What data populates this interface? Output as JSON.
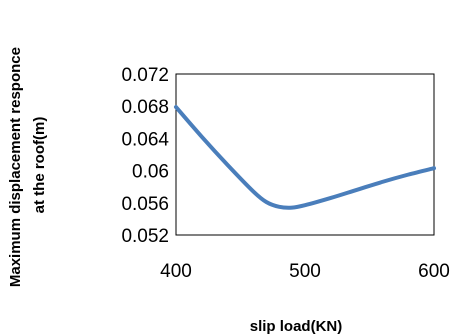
{
  "chart_data": {
    "type": "line",
    "title": "",
    "xlabel": "slip load(KN)",
    "ylabel_lines": [
      "Maximum displacement responce",
      "at the roof(m)"
    ],
    "xlim": [
      400,
      600
    ],
    "ylim": [
      0.052,
      0.072
    ],
    "x_ticks": [
      400,
      500,
      600
    ],
    "y_ticks": [
      "0.052",
      "0.056",
      "0.06",
      "0.064",
      "0.068",
      "0.072"
    ],
    "grid": false,
    "legend": "none",
    "series": [
      {
        "color": "#4a7ebb",
        "x": [
          400,
          420,
          440,
          460,
          470,
          480,
          490,
          500,
          520,
          540,
          560,
          580,
          600
        ],
        "y": [
          0.0679,
          0.0642,
          0.0607,
          0.0574,
          0.0561,
          0.0555,
          0.0554,
          0.0557,
          0.0566,
          0.0576,
          0.0586,
          0.0595,
          0.0603
        ]
      }
    ]
  }
}
